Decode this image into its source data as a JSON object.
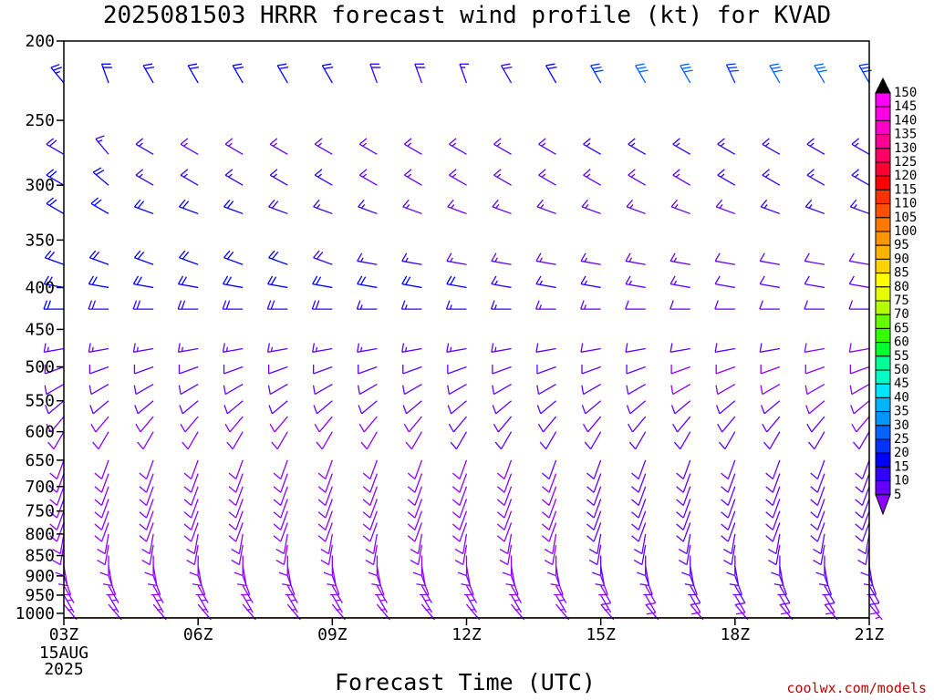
{
  "chart_data": {
    "type": "wind-barb-time-height",
    "title": "2025081503 HRRR forecast wind profile (kt) for KVAD",
    "xlabel": "Forecast Time (UTC)",
    "credit": "coolwx.com/models",
    "x_ticks": [
      "03Z",
      "06Z",
      "09Z",
      "12Z",
      "15Z",
      "18Z",
      "21Z"
    ],
    "x_tick_hours": [
      3,
      6,
      9,
      12,
      15,
      18,
      21
    ],
    "x_date_label": [
      "15AUG",
      "2025"
    ],
    "xlim": [
      3,
      21
    ],
    "y_ticks": [
      200,
      250,
      300,
      350,
      400,
      450,
      500,
      550,
      600,
      650,
      700,
      750,
      800,
      850,
      900,
      950,
      1000
    ],
    "ylim": [
      1000,
      200
    ],
    "yscale": "log-pressure",
    "hours": [
      3,
      4,
      5,
      6,
      7,
      8,
      9,
      10,
      11,
      12,
      13,
      14,
      15,
      16,
      17,
      18,
      19,
      20,
      21
    ],
    "levels": [
      225,
      275,
      300,
      325,
      375,
      400,
      425,
      475,
      500,
      525,
      550,
      575,
      600,
      650,
      675,
      700,
      725,
      750,
      775,
      800,
      825,
      850,
      875,
      900,
      925,
      950,
      975
    ],
    "speed_kt": [
      [
        24,
        21,
        21,
        22,
        20,
        20,
        20,
        18,
        18,
        17,
        18,
        20,
        28,
        32,
        32,
        28,
        30,
        30,
        28
      ],
      [
        18,
        16,
        15,
        14,
        14,
        14,
        14,
        14,
        14,
        14,
        14,
        14,
        15,
        15,
        16,
        16,
        17,
        17,
        15
      ],
      [
        20,
        20,
        17,
        17,
        16,
        16,
        16,
        14,
        14,
        14,
        14,
        14,
        14,
        14,
        14,
        15,
        15,
        17,
        17
      ],
      [
        22,
        21,
        20,
        20,
        20,
        18,
        17,
        15,
        14,
        14,
        14,
        14,
        14,
        13,
        14,
        14,
        15,
        16,
        16
      ],
      [
        22,
        22,
        22,
        21,
        22,
        20,
        19,
        17,
        15,
        14,
        14,
        14,
        14,
        14,
        13,
        12,
        12,
        12,
        12
      ],
      [
        22,
        20,
        21,
        22,
        20,
        20,
        21,
        22,
        22,
        20,
        17,
        15,
        15,
        14,
        14,
        12,
        11,
        12,
        11
      ],
      [
        20,
        19,
        19,
        19,
        18,
        18,
        18,
        17,
        17,
        16,
        15,
        14,
        13,
        11,
        11,
        11,
        11,
        10,
        11
      ],
      [
        14,
        14,
        14,
        14,
        14,
        14,
        14,
        13,
        13,
        13,
        13,
        12,
        11,
        10,
        10,
        10,
        10,
        9,
        9
      ],
      [
        11,
        11,
        11,
        11,
        12,
        12,
        12,
        12,
        11,
        11,
        11,
        10,
        10,
        10,
        9,
        9,
        9,
        9,
        9
      ],
      [
        10,
        10,
        10,
        10,
        10,
        10,
        10,
        10,
        10,
        10,
        10,
        10,
        10,
        10,
        9,
        9,
        9,
        9,
        9
      ],
      [
        10,
        10,
        10,
        10,
        10,
        10,
        10,
        10,
        10,
        10,
        10,
        10,
        10,
        10,
        10,
        10,
        10,
        9,
        9
      ],
      [
        9,
        9,
        9,
        9,
        9,
        9,
        9,
        9,
        9,
        10,
        10,
        10,
        11,
        11,
        11,
        11,
        10,
        10,
        9
      ],
      [
        9,
        9,
        9,
        9,
        9,
        9,
        9,
        9,
        9,
        10,
        10,
        10,
        10,
        10,
        10,
        10,
        10,
        10,
        10
      ],
      [
        8,
        8,
        8,
        8,
        8,
        8,
        8,
        8,
        9,
        9,
        9,
        10,
        10,
        10,
        10,
        10,
        11,
        11,
        11
      ],
      [
        8,
        8,
        8,
        8,
        8,
        8,
        8,
        8,
        8,
        9,
        9,
        9,
        10,
        10,
        10,
        10,
        11,
        11,
        11
      ],
      [
        8,
        8,
        8,
        8,
        8,
        8,
        8,
        8,
        8,
        8,
        9,
        9,
        10,
        10,
        10,
        10,
        11,
        11,
        11
      ],
      [
        8,
        8,
        8,
        8,
        8,
        8,
        8,
        8,
        8,
        8,
        9,
        9,
        10,
        10,
        10,
        11,
        11,
        11,
        12
      ],
      [
        8,
        8,
        8,
        8,
        8,
        8,
        8,
        8,
        8,
        8,
        8,
        9,
        10,
        10,
        10,
        11,
        11,
        12,
        12
      ],
      [
        8,
        8,
        8,
        8,
        8,
        8,
        8,
        8,
        8,
        8,
        8,
        9,
        10,
        10,
        11,
        11,
        12,
        12,
        12
      ],
      [
        8,
        8,
        8,
        8,
        8,
        8,
        8,
        8,
        8,
        8,
        8,
        9,
        10,
        11,
        11,
        12,
        12,
        12,
        12
      ],
      [
        8,
        8,
        8,
        8,
        8,
        8,
        8,
        8,
        8,
        8,
        8,
        9,
        10,
        11,
        12,
        12,
        12,
        12,
        12
      ],
      [
        8,
        8,
        8,
        8,
        8,
        8,
        8,
        8,
        8,
        8,
        8,
        9,
        10,
        11,
        12,
        12,
        12,
        12,
        12
      ],
      [
        8,
        8,
        8,
        8,
        8,
        8,
        8,
        8,
        8,
        8,
        8,
        8,
        10,
        11,
        12,
        12,
        12,
        12,
        12
      ],
      [
        8,
        8,
        8,
        8,
        8,
        8,
        8,
        8,
        8,
        8,
        8,
        8,
        9,
        10,
        11,
        11,
        12,
        11,
        11
      ],
      [
        7,
        7,
        7,
        7,
        7,
        7,
        7,
        7,
        7,
        7,
        7,
        7,
        8,
        9,
        10,
        10,
        10,
        10,
        10
      ],
      [
        6,
        6,
        6,
        6,
        6,
        6,
        6,
        6,
        6,
        6,
        6,
        6,
        7,
        8,
        9,
        9,
        9,
        9,
        9
      ],
      [
        5,
        5,
        5,
        5,
        5,
        5,
        5,
        5,
        5,
        5,
        5,
        5,
        6,
        6,
        7,
        7,
        7,
        7,
        7
      ]
    ],
    "direction_deg": [
      [
        320,
        340,
        330,
        330,
        330,
        330,
        330,
        340,
        340,
        340,
        330,
        330,
        330,
        330,
        330,
        335,
        330,
        330,
        330
      ],
      [
        300,
        320,
        300,
        300,
        300,
        300,
        300,
        300,
        300,
        300,
        300,
        300,
        300,
        300,
        300,
        300,
        300,
        300,
        300
      ],
      [
        300,
        310,
        300,
        300,
        300,
        300,
        300,
        300,
        300,
        300,
        300,
        300,
        300,
        300,
        300,
        300,
        300,
        300,
        300
      ],
      [
        300,
        300,
        290,
        290,
        290,
        290,
        290,
        290,
        290,
        290,
        290,
        290,
        290,
        290,
        290,
        290,
        290,
        290,
        290
      ],
      [
        290,
        290,
        290,
        290,
        290,
        290,
        290,
        280,
        280,
        280,
        280,
        280,
        280,
        280,
        280,
        280,
        280,
        280,
        280
      ],
      [
        280,
        280,
        280,
        280,
        280,
        280,
        280,
        280,
        280,
        280,
        280,
        280,
        280,
        280,
        280,
        280,
        280,
        280,
        280
      ],
      [
        270,
        270,
        270,
        270,
        270,
        270,
        270,
        270,
        270,
        270,
        270,
        270,
        270,
        270,
        270,
        270,
        270,
        270,
        270
      ],
      [
        260,
        260,
        260,
        260,
        260,
        260,
        260,
        260,
        260,
        260,
        260,
        260,
        260,
        260,
        260,
        260,
        260,
        260,
        260
      ],
      [
        250,
        250,
        250,
        250,
        250,
        250,
        250,
        250,
        250,
        250,
        250,
        250,
        250,
        250,
        250,
        250,
        250,
        250,
        250
      ],
      [
        240,
        240,
        240,
        240,
        240,
        240,
        240,
        240,
        240,
        240,
        240,
        240,
        240,
        240,
        240,
        240,
        240,
        240,
        240
      ],
      [
        230,
        230,
        230,
        230,
        230,
        230,
        230,
        230,
        230,
        230,
        230,
        230,
        230,
        230,
        230,
        230,
        230,
        230,
        230
      ],
      [
        220,
        220,
        220,
        220,
        220,
        220,
        220,
        220,
        220,
        220,
        220,
        220,
        220,
        220,
        220,
        220,
        220,
        220,
        220
      ],
      [
        210,
        210,
        210,
        210,
        210,
        210,
        210,
        210,
        210,
        210,
        210,
        210,
        210,
        210,
        210,
        210,
        210,
        210,
        210
      ],
      [
        200,
        200,
        200,
        200,
        200,
        200,
        200,
        200,
        200,
        200,
        200,
        200,
        200,
        200,
        200,
        200,
        200,
        200,
        200
      ],
      [
        200,
        200,
        200,
        200,
        200,
        200,
        200,
        200,
        200,
        200,
        200,
        200,
        200,
        200,
        200,
        200,
        200,
        200,
        200
      ],
      [
        200,
        200,
        200,
        200,
        200,
        200,
        200,
        200,
        200,
        200,
        200,
        200,
        200,
        200,
        200,
        200,
        200,
        200,
        200
      ],
      [
        200,
        200,
        200,
        200,
        200,
        200,
        200,
        200,
        200,
        200,
        200,
        200,
        200,
        200,
        200,
        200,
        200,
        200,
        200
      ],
      [
        200,
        200,
        200,
        200,
        200,
        200,
        200,
        200,
        200,
        200,
        200,
        200,
        200,
        200,
        200,
        200,
        200,
        200,
        200
      ],
      [
        200,
        200,
        200,
        200,
        200,
        200,
        200,
        200,
        200,
        200,
        200,
        200,
        200,
        200,
        200,
        200,
        200,
        200,
        200
      ],
      [
        190,
        190,
        190,
        190,
        190,
        190,
        190,
        190,
        190,
        190,
        190,
        190,
        190,
        190,
        190,
        190,
        190,
        190,
        190
      ],
      [
        190,
        190,
        190,
        190,
        190,
        190,
        190,
        190,
        190,
        190,
        190,
        190,
        190,
        190,
        190,
        190,
        190,
        190,
        190
      ],
      [
        180,
        180,
        180,
        180,
        180,
        180,
        180,
        180,
        180,
        180,
        180,
        180,
        180,
        180,
        180,
        180,
        180,
        180,
        180
      ],
      [
        170,
        170,
        170,
        170,
        170,
        170,
        170,
        170,
        170,
        170,
        170,
        170,
        170,
        170,
        170,
        170,
        170,
        170,
        170
      ],
      [
        160,
        160,
        160,
        160,
        160,
        160,
        160,
        160,
        160,
        160,
        160,
        160,
        160,
        160,
        160,
        160,
        160,
        160,
        160
      ],
      [
        150,
        150,
        150,
        150,
        150,
        150,
        150,
        150,
        150,
        150,
        150,
        150,
        150,
        150,
        150,
        150,
        150,
        150,
        150
      ],
      [
        150,
        150,
        150,
        150,
        150,
        150,
        150,
        150,
        150,
        150,
        150,
        150,
        150,
        150,
        150,
        150,
        150,
        150,
        150
      ],
      [
        140,
        140,
        140,
        140,
        140,
        140,
        140,
        140,
        140,
        140,
        140,
        140,
        140,
        140,
        140,
        140,
        140,
        140,
        140
      ]
    ],
    "colorbar": {
      "labels": [
        150,
        145,
        140,
        135,
        130,
        125,
        120,
        115,
        110,
        105,
        100,
        95,
        90,
        85,
        80,
        75,
        70,
        65,
        60,
        55,
        50,
        45,
        40,
        35,
        30,
        25,
        20,
        15,
        10,
        5
      ],
      "colors": [
        "#ff00ff",
        "#ff00e6",
        "#ff00c8",
        "#ff0096",
        "#ff0064",
        "#ff0032",
        "#ff0000",
        "#ff3200",
        "#ff5000",
        "#ff7800",
        "#ff9600",
        "#ffb400",
        "#ffd200",
        "#ffff00",
        "#e6ff00",
        "#b4ff00",
        "#64ff00",
        "#32ff00",
        "#00ff32",
        "#00ff96",
        "#00ffc8",
        "#00e6ff",
        "#00b4ff",
        "#0096ff",
        "#0064ff",
        "#0032ff",
        "#0000ff",
        "#3200ff",
        "#6400ff",
        "#8c00ff"
      ]
    },
    "ground_color": "#a0522d",
    "grid": false,
    "legend": "right-colorbar"
  }
}
